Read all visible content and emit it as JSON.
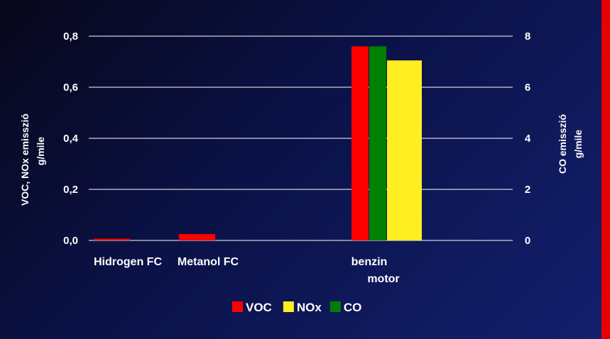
{
  "chart_data": {
    "type": "bar",
    "categories": [
      "Hidrogen FC",
      "Metanol FC",
      "benzin motor"
    ],
    "category_lines": [
      [
        "Hidrogen FC"
      ],
      [
        "Metanol FC"
      ],
      [
        "benzin",
        "motor"
      ]
    ],
    "left_axis": {
      "title_lines": [
        "VOC,  NOx  emisszió",
        "g/mile"
      ],
      "ylim": [
        0,
        0.8
      ],
      "ticks": [
        "0,0",
        "0,2",
        "0,4",
        "0,6",
        "0,8"
      ]
    },
    "right_axis": {
      "title_lines": [
        "CO emisszió",
        "g/mile"
      ],
      "ylim": [
        0,
        8
      ],
      "ticks": [
        "0",
        "2",
        "4",
        "6",
        "8"
      ]
    },
    "series": [
      {
        "name": "VOC",
        "color": "#ff0000",
        "axis": "left",
        "values": [
          0.007,
          0.025,
          0.76
        ]
      },
      {
        "name": "NOx",
        "color": "#ffee22",
        "axis": "left",
        "values": [
          0,
          0,
          0.705
        ]
      },
      {
        "name": "CO",
        "color": "#008000",
        "axis": "right",
        "values": [
          0,
          0,
          7.6
        ]
      }
    ],
    "grid": true,
    "legend_position": "bottom-center"
  }
}
